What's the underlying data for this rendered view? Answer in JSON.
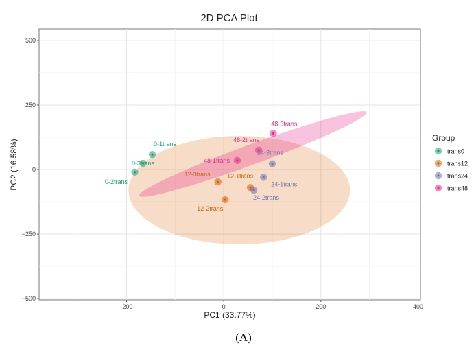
{
  "chart_data": {
    "type": "scatter",
    "title": "2D PCA Plot",
    "xlabel": "PC1 (33.77%)",
    "ylabel": "PC2 (16.58%)",
    "xlim": [
      -380,
      405
    ],
    "ylim": [
      -505,
      545
    ],
    "xticks": [
      -200,
      0,
      200,
      400
    ],
    "yticks": [
      -500,
      -250,
      0,
      250,
      500
    ],
    "xtick_labels": [
      "-200",
      "0",
      "200",
      "400"
    ],
    "ytick_labels": [
      "−500",
      "−250",
      "0",
      "250",
      "500"
    ],
    "grid": true,
    "legend": {
      "title": "Group",
      "position": "right"
    },
    "series": [
      {
        "name": "trans0",
        "color": "#1b9e77",
        "points": [
          {
            "label": "0-1trans",
            "x": -147,
            "y": 58,
            "anchor": "start",
            "dx": 2,
            "dy": -12
          },
          {
            "label": "0-2trans",
            "x": -183,
            "y": -10,
            "anchor": "middle",
            "dx": -27,
            "dy": 17
          },
          {
            "label": "0-3trans",
            "x": -166,
            "y": 24,
            "anchor": "middle",
            "dx": 0,
            "dy": 3
          }
        ],
        "ellipse": null
      },
      {
        "name": "trans12",
        "color": "#d95f02",
        "points": [
          {
            "label": "12-1trans",
            "x": 55,
            "y": -70,
            "anchor": "middle",
            "dx": -15,
            "dy": -14
          },
          {
            "label": "12-2trans",
            "x": 3,
            "y": -117,
            "anchor": "middle",
            "dx": -22,
            "dy": 16
          },
          {
            "label": "12-3trans",
            "x": -12,
            "y": -48,
            "anchor": "middle",
            "dx": -30,
            "dy": -8
          }
        ],
        "ellipse": {
          "cx": 32,
          "cy": -80,
          "rx": 228,
          "ry": 210,
          "angle": 0
        }
      },
      {
        "name": "trans24",
        "color": "#7570b3",
        "points": [
          {
            "label": "24-1trans",
            "x": 82,
            "y": -30,
            "anchor": "middle",
            "dx": 30,
            "dy": 13
          },
          {
            "label": "24-2trans",
            "x": 62,
            "y": -80,
            "anchor": "middle",
            "dx": 18,
            "dy": 14
          },
          {
            "label": "24-3trans",
            "x": 100,
            "y": 22,
            "anchor": "middle",
            "dx": -3,
            "dy": -13
          }
        ],
        "ellipse": null
      },
      {
        "name": "trans48",
        "color": "#e7298a",
        "points": [
          {
            "label": "48-1trans",
            "x": 28,
            "y": 35,
            "anchor": "middle",
            "dx": -30,
            "dy": 3
          },
          {
            "label": "48-2trans",
            "x": 72,
            "y": 75,
            "anchor": "middle",
            "dx": -18,
            "dy": -12
          },
          {
            "label": "48-3trans",
            "x": 102,
            "y": 140,
            "anchor": "middle",
            "dx": 16,
            "dy": -11
          }
        ],
        "ellipse": {
          "cx": 60,
          "cy": 60,
          "rx": 285,
          "ry": 34,
          "angle": 35
        }
      }
    ]
  },
  "caption": "(A)"
}
